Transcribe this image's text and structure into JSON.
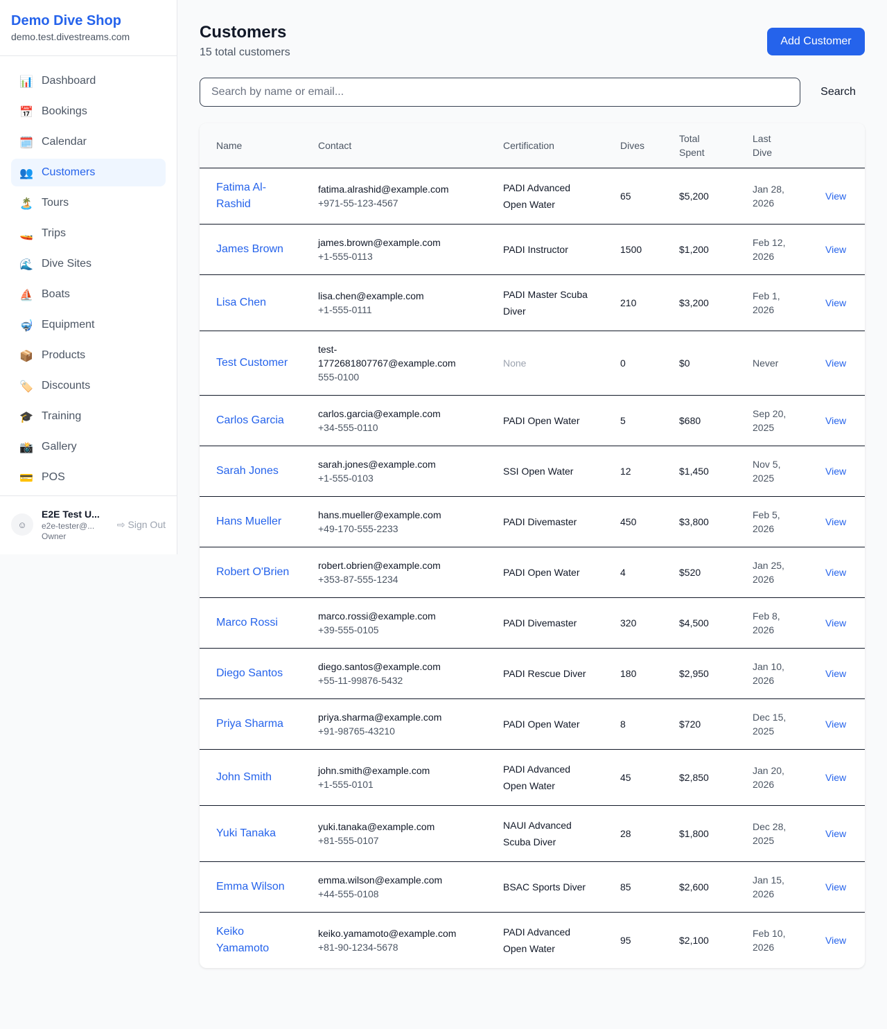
{
  "brand": {
    "name": "Demo Dive Shop",
    "domain": "demo.test.divestreams.com"
  },
  "nav": [
    {
      "label": "Dashboard",
      "icon": "📊",
      "icon_name": "bar-chart-icon"
    },
    {
      "label": "Bookings",
      "icon": "📅",
      "icon_name": "calendar-date-icon"
    },
    {
      "label": "Calendar",
      "icon": "🗓️",
      "icon_name": "spiral-calendar-icon"
    },
    {
      "label": "Customers",
      "icon": "👥",
      "icon_name": "people-icon",
      "active": true
    },
    {
      "label": "Tours",
      "icon": "🏝️",
      "icon_name": "island-icon"
    },
    {
      "label": "Trips",
      "icon": "🚤",
      "icon_name": "speedboat-icon"
    },
    {
      "label": "Dive Sites",
      "icon": "🌊",
      "icon_name": "wave-icon"
    },
    {
      "label": "Boats",
      "icon": "⛵",
      "icon_name": "sailboat-icon"
    },
    {
      "label": "Equipment",
      "icon": "🤿",
      "icon_name": "diving-mask-icon"
    },
    {
      "label": "Products",
      "icon": "📦",
      "icon_name": "package-icon"
    },
    {
      "label": "Discounts",
      "icon": "🏷️",
      "icon_name": "tag-icon"
    },
    {
      "label": "Training",
      "icon": "🎓",
      "icon_name": "graduation-cap-icon"
    },
    {
      "label": "Gallery",
      "icon": "📸",
      "icon_name": "camera-icon"
    },
    {
      "label": "POS",
      "icon": "💳",
      "icon_name": "credit-card-icon"
    }
  ],
  "user": {
    "name": "E2E Test U...",
    "email": "e2e-tester@...",
    "role": "Owner",
    "sign_out": "Sign Out"
  },
  "header": {
    "title": "Customers",
    "subtitle": "15 total customers",
    "add_button": "Add Customer"
  },
  "search": {
    "placeholder": "Search by name or email...",
    "value": "",
    "button": "Search"
  },
  "table": {
    "columns": [
      "Name",
      "Contact",
      "Certification",
      "Dives",
      "Total Spent",
      "Last Dive",
      ""
    ],
    "view_label": "View",
    "rows": [
      {
        "name": "Fatima Al-Rashid",
        "email": "fatima.alrashid@example.com",
        "phone": "+971-55-123-4567",
        "cert": "PADI Advanced Open Water",
        "dives": "65",
        "spent": "$5,200",
        "last": "Jan 28, 2026"
      },
      {
        "name": "James Brown",
        "email": "james.brown@example.com",
        "phone": "+1-555-0113",
        "cert": "PADI Instructor",
        "dives": "1500",
        "spent": "$1,200",
        "last": "Feb 12, 2026"
      },
      {
        "name": "Lisa Chen",
        "email": "lisa.chen@example.com",
        "phone": "+1-555-0111",
        "cert": "PADI Master Scuba Diver",
        "dives": "210",
        "spent": "$3,200",
        "last": "Feb 1, 2026"
      },
      {
        "name": "Test Customer",
        "email": "test-1772681807767@example.com",
        "phone": "555-0100",
        "cert": "None",
        "dives": "0",
        "spent": "$0",
        "last": "Never"
      },
      {
        "name": "Carlos Garcia",
        "email": "carlos.garcia@example.com",
        "phone": "+34-555-0110",
        "cert": "PADI Open Water",
        "dives": "5",
        "spent": "$680",
        "last": "Sep 20, 2025"
      },
      {
        "name": "Sarah Jones",
        "email": "sarah.jones@example.com",
        "phone": "+1-555-0103",
        "cert": "SSI Open Water",
        "dives": "12",
        "spent": "$1,450",
        "last": "Nov 5, 2025"
      },
      {
        "name": "Hans Mueller",
        "email": "hans.mueller@example.com",
        "phone": "+49-170-555-2233",
        "cert": "PADI Divemaster",
        "dives": "450",
        "spent": "$3,800",
        "last": "Feb 5, 2026"
      },
      {
        "name": "Robert O'Brien",
        "email": "robert.obrien@example.com",
        "phone": "+353-87-555-1234",
        "cert": "PADI Open Water",
        "dives": "4",
        "spent": "$520",
        "last": "Jan 25, 2026"
      },
      {
        "name": "Marco Rossi",
        "email": "marco.rossi@example.com",
        "phone": "+39-555-0105",
        "cert": "PADI Divemaster",
        "dives": "320",
        "spent": "$4,500",
        "last": "Feb 8, 2026"
      },
      {
        "name": "Diego Santos",
        "email": "diego.santos@example.com",
        "phone": "+55-11-99876-5432",
        "cert": "PADI Rescue Diver",
        "dives": "180",
        "spent": "$2,950",
        "last": "Jan 10, 2026"
      },
      {
        "name": "Priya Sharma",
        "email": "priya.sharma@example.com",
        "phone": "+91-98765-43210",
        "cert": "PADI Open Water",
        "dives": "8",
        "spent": "$720",
        "last": "Dec 15, 2025"
      },
      {
        "name": "John Smith",
        "email": "john.smith@example.com",
        "phone": "+1-555-0101",
        "cert": "PADI Advanced Open Water",
        "dives": "45",
        "spent": "$2,850",
        "last": "Jan 20, 2026"
      },
      {
        "name": "Yuki Tanaka",
        "email": "yuki.tanaka@example.com",
        "phone": "+81-555-0107",
        "cert": "NAUI Advanced Scuba Diver",
        "dives": "28",
        "spent": "$1,800",
        "last": "Dec 28, 2025"
      },
      {
        "name": "Emma Wilson",
        "email": "emma.wilson@example.com",
        "phone": "+44-555-0108",
        "cert": "BSAC Sports Diver",
        "dives": "85",
        "spent": "$2,600",
        "last": "Jan 15, 2026"
      },
      {
        "name": "Keiko Yamamoto",
        "email": "keiko.yamamoto@example.com",
        "phone": "+81-90-1234-5678",
        "cert": "PADI Advanced Open Water",
        "dives": "95",
        "spent": "$2,100",
        "last": "Feb 10, 2026"
      }
    ]
  },
  "colors": {
    "accent": "#2563eb",
    "active_bg": "#eff6ff"
  }
}
